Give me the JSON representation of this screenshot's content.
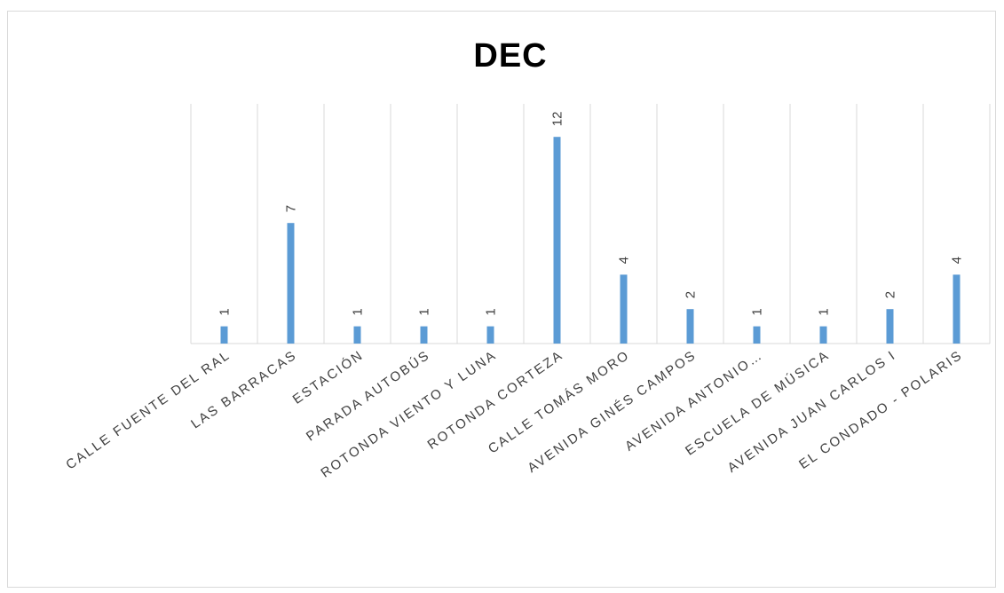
{
  "chart_data": {
    "type": "bar",
    "title": "DEC",
    "xlabel": "",
    "ylabel": "",
    "categories": [
      "CALLE FUENTE DEL RAL",
      "LAS BARRACAS",
      "ESTACIÓN",
      "PARADA AUTOBÚS",
      "ROTONDA VIENTO Y LUNA",
      "ROTONDA CORTEZA",
      "CALLE TOMÁS MORO",
      "AVENIDA GINÉS CAMPOS",
      "AVENIDA ANTONIO…",
      "ESCUELA DE MÚSICA",
      "AVENIDA JUAN CARLOS I",
      "EL CONDADO - POLARIS"
    ],
    "values": [
      1,
      7,
      1,
      1,
      1,
      12,
      4,
      2,
      1,
      1,
      2,
      4
    ],
    "ylim": [
      0,
      14
    ],
    "grid": "vertical",
    "legend": "none",
    "bar_color": "#5b9bd5",
    "grid_color": "#d9d9d9"
  }
}
